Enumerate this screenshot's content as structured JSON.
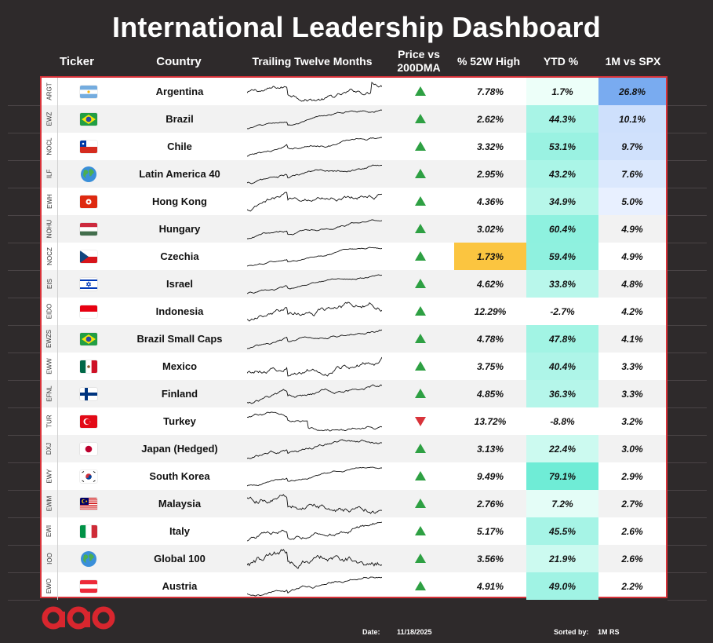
{
  "title": "International Leadership Dashboard",
  "headers": {
    "ticker": "Ticker",
    "country": "Country",
    "ttm": "Trailing Twelve Months",
    "price_vs_1": "Price vs",
    "price_vs_2": "200DMA",
    "pct52": "% 52W High",
    "ytd": "YTD %",
    "rs": "1M vs SPX"
  },
  "footer": {
    "date_label": "Date:",
    "date_value": "11/18/2025",
    "sorted_label": "Sorted by:",
    "sorted_value": "1M RS"
  },
  "colors": {
    "up": "#2ea043",
    "down": "#d8333a",
    "highlight_52w": "#fbc540",
    "border": "#d8333a"
  },
  "chart_data": {
    "type": "table",
    "columns": [
      "Ticker",
      "Country",
      "Trailing Twelve Months",
      "Price vs 200DMA",
      "% 52W High",
      "YTD %",
      "1M vs SPX"
    ],
    "rows": [
      {
        "ticker": "ARGT",
        "country": "Argentina",
        "flag": "argentina-flag",
        "trend": "up",
        "pct52": "7.78%",
        "ytd": "1.7%",
        "rs": "26.8%",
        "ytd_v": 1.7,
        "rs_v": 26.8
      },
      {
        "ticker": "EWZ",
        "country": "Brazil",
        "flag": "brazil-flag",
        "trend": "up",
        "pct52": "2.62%",
        "ytd": "44.3%",
        "rs": "10.1%",
        "ytd_v": 44.3,
        "rs_v": 10.1
      },
      {
        "ticker": "NOCL",
        "country": "Chile",
        "flag": "chile-flag",
        "trend": "up",
        "pct52": "3.32%",
        "ytd": "53.1%",
        "rs": "9.7%",
        "ytd_v": 53.1,
        "rs_v": 9.7
      },
      {
        "ticker": "ILF",
        "country": "Latin America 40",
        "flag": "globe-icon",
        "trend": "up",
        "pct52": "2.95%",
        "ytd": "43.2%",
        "rs": "7.6%",
        "ytd_v": 43.2,
        "rs_v": 7.6
      },
      {
        "ticker": "EWH",
        "country": "Hong Kong",
        "flag": "hong-kong-flag",
        "trend": "up",
        "pct52": "4.36%",
        "ytd": "34.9%",
        "rs": "5.0%",
        "ytd_v": 34.9,
        "rs_v": 5.0
      },
      {
        "ticker": "NOHU",
        "country": "Hungary",
        "flag": "hungary-flag",
        "trend": "up",
        "pct52": "3.02%",
        "ytd": "60.4%",
        "rs": "4.9%",
        "ytd_v": 60.4,
        "rs_v": 4.9
      },
      {
        "ticker": "NOCZ",
        "country": "Czechia",
        "flag": "czechia-flag",
        "trend": "up",
        "pct52": "1.73%",
        "ytd": "59.4%",
        "rs": "4.9%",
        "ytd_v": 59.4,
        "rs_v": 4.9,
        "highlight": true
      },
      {
        "ticker": "EIS",
        "country": "Israel",
        "flag": "israel-flag",
        "trend": "up",
        "pct52": "4.62%",
        "ytd": "33.8%",
        "rs": "4.8%",
        "ytd_v": 33.8,
        "rs_v": 4.8
      },
      {
        "ticker": "EIDO",
        "country": "Indonesia",
        "flag": "indonesia-flag",
        "trend": "up",
        "pct52": "12.29%",
        "ytd": "-2.7%",
        "rs": "4.2%",
        "ytd_v": -2.7,
        "rs_v": 4.2
      },
      {
        "ticker": "EWZS",
        "country": "Brazil Small Caps",
        "flag": "brazil-flag",
        "trend": "up",
        "pct52": "4.78%",
        "ytd": "47.8%",
        "rs": "4.1%",
        "ytd_v": 47.8,
        "rs_v": 4.1
      },
      {
        "ticker": "EWW",
        "country": "Mexico",
        "flag": "mexico-flag",
        "trend": "up",
        "pct52": "3.75%",
        "ytd": "40.4%",
        "rs": "3.3%",
        "ytd_v": 40.4,
        "rs_v": 3.3
      },
      {
        "ticker": "EFNL",
        "country": "Finland",
        "flag": "finland-flag",
        "trend": "up",
        "pct52": "4.85%",
        "ytd": "36.3%",
        "rs": "3.3%",
        "ytd_v": 36.3,
        "rs_v": 3.3
      },
      {
        "ticker": "TUR",
        "country": "Turkey",
        "flag": "turkey-flag",
        "trend": "down",
        "pct52": "13.72%",
        "ytd": "-8.8%",
        "rs": "3.2%",
        "ytd_v": -8.8,
        "rs_v": 3.2
      },
      {
        "ticker": "DXJ",
        "country": "Japan (Hedged)",
        "flag": "japan-flag",
        "trend": "up",
        "pct52": "3.13%",
        "ytd": "22.4%",
        "rs": "3.0%",
        "ytd_v": 22.4,
        "rs_v": 3.0
      },
      {
        "ticker": "EWY",
        "country": "South Korea",
        "flag": "south-korea-flag",
        "trend": "up",
        "pct52": "9.49%",
        "ytd": "79.1%",
        "rs": "2.9%",
        "ytd_v": 79.1,
        "rs_v": 2.9
      },
      {
        "ticker": "EWM",
        "country": "Malaysia",
        "flag": "malaysia-flag",
        "trend": "up",
        "pct52": "2.76%",
        "ytd": "7.2%",
        "rs": "2.7%",
        "ytd_v": 7.2,
        "rs_v": 2.7
      },
      {
        "ticker": "EWI",
        "country": "Italy",
        "flag": "italy-flag",
        "trend": "up",
        "pct52": "5.17%",
        "ytd": "45.5%",
        "rs": "2.6%",
        "ytd_v": 45.5,
        "rs_v": 2.6
      },
      {
        "ticker": "IOO",
        "country": "Global 100",
        "flag": "globe-icon",
        "trend": "up",
        "pct52": "3.56%",
        "ytd": "21.9%",
        "rs": "2.6%",
        "ytd_v": 21.9,
        "rs_v": 2.6
      },
      {
        "ticker": "EWO",
        "country": "Austria",
        "flag": "austria-flag",
        "trend": "up",
        "pct52": "4.91%",
        "ytd": "49.0%",
        "rs": "2.2%",
        "ytd_v": 49.0,
        "rs_v": 2.2
      }
    ]
  }
}
